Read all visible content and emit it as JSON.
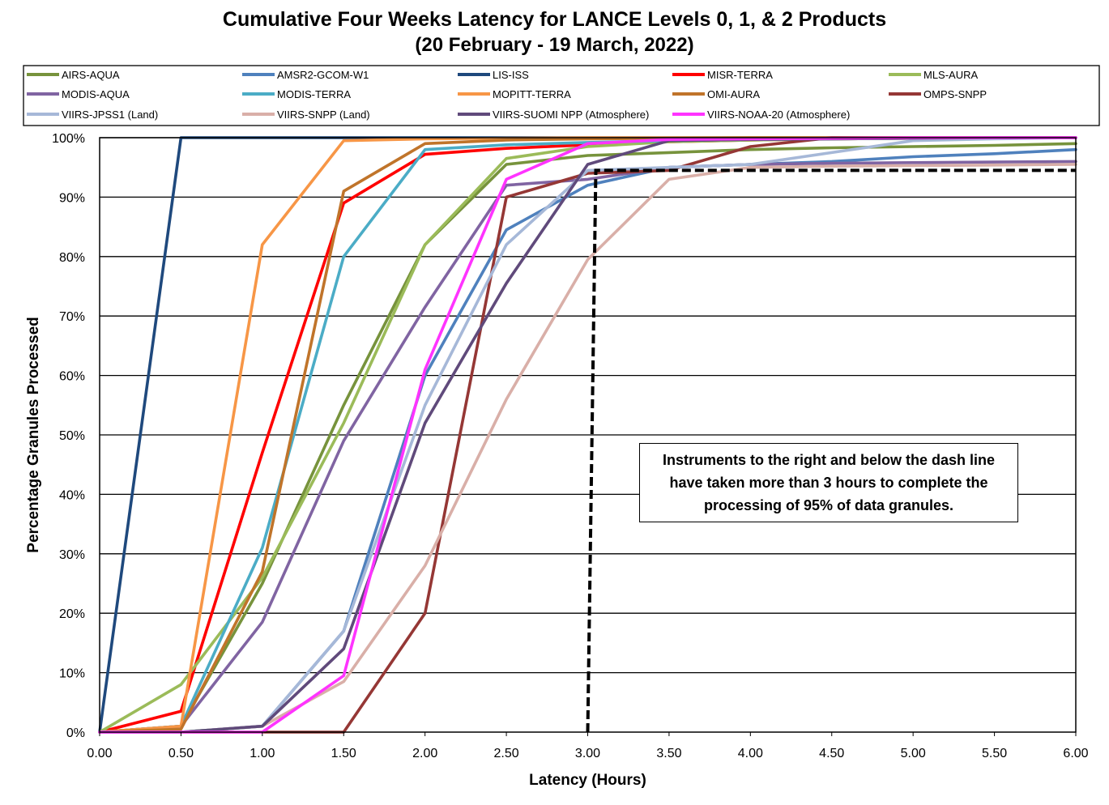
{
  "chart_data": {
    "type": "line",
    "title": "Cumulative Four Weeks Latency  for LANCE Levels 0, 1, & 2 Products",
    "subtitle": "(20  February   -  19  March,  2022)",
    "xlabel": "Latency (Hours)",
    "ylabel": "Percentage Granules Processed",
    "xlim": [
      0,
      6
    ],
    "ylim": [
      0,
      100
    ],
    "x_ticks": [
      "0.00",
      "0.50",
      "1.00",
      "1.50",
      "2.00",
      "2.50",
      "3.00",
      "3.50",
      "4.00",
      "4.50",
      "5.00",
      "5.50",
      "6.00"
    ],
    "y_ticks": [
      "0%",
      "10%",
      "20%",
      "30%",
      "40%",
      "50%",
      "60%",
      "70%",
      "80%",
      "90%",
      "100%"
    ],
    "grid": "horizontal",
    "legend_position": "top",
    "annotation": "Instruments to the right and below the dash line have taken more than 3 hours to complete the processing of 95% of data granules.",
    "threshold_line": {
      "x": [
        3.0,
        3.05,
        6.0
      ],
      "y": [
        0,
        94.5,
        94.5
      ],
      "style": "dashed",
      "color": "#000000"
    },
    "x": [
      0,
      0.5,
      1.0,
      1.5,
      2.0,
      2.5,
      3.0,
      3.5,
      4.0,
      4.5,
      5.0,
      5.5,
      6.0
    ],
    "series": [
      {
        "name": "AIRS-AQUA",
        "color": "#77933C",
        "values": [
          0,
          1,
          25,
          55,
          82,
          95.5,
          97,
          97.5,
          98,
          98.3,
          98.5,
          98.7,
          99
        ]
      },
      {
        "name": "AMSR2-GCOM-W1",
        "color": "#4F81BD",
        "values": [
          0,
          0,
          1,
          17,
          60,
          84.5,
          92,
          95,
          95.5,
          96,
          96.8,
          97.3,
          98
        ]
      },
      {
        "name": "LIS-ISS",
        "color": "#1F497D",
        "values": [
          0,
          100,
          100,
          100,
          100,
          100,
          100,
          100,
          100,
          100,
          100,
          100,
          100
        ]
      },
      {
        "name": "MISR-TERRA",
        "color": "#FF0000",
        "values": [
          0,
          3.5,
          47,
          89,
          97.2,
          98.2,
          98.8,
          99.3,
          99.6,
          99.8,
          99.9,
          100,
          100
        ]
      },
      {
        "name": "MLS-AURA",
        "color": "#9BBB59",
        "values": [
          0,
          8,
          26,
          52,
          82,
          96.5,
          98.5,
          99.3,
          99.6,
          99.8,
          99.9,
          100,
          100
        ]
      },
      {
        "name": "MODIS-AQUA",
        "color": "#8064A2",
        "values": [
          0,
          1,
          18.5,
          49,
          71.5,
          92,
          93,
          95,
          95.5,
          95.7,
          95.8,
          95.9,
          96
        ]
      },
      {
        "name": "MODIS-TERRA",
        "color": "#4BACC6",
        "values": [
          0,
          1,
          31,
          80,
          98,
          98.8,
          99.2,
          99.5,
          99.7,
          99.8,
          99.9,
          100,
          100
        ]
      },
      {
        "name": "MOPITT-TERRA",
        "color": "#F79646",
        "values": [
          0,
          1,
          82,
          99.5,
          99.8,
          99.9,
          100,
          100,
          100,
          100,
          100,
          100,
          100
        ]
      },
      {
        "name": "OMI-AURA",
        "color": "#C0742A",
        "values": [
          0,
          0.5,
          27,
          91,
          99,
          99.6,
          99.8,
          99.9,
          100,
          100,
          100,
          100,
          100
        ]
      },
      {
        "name": "OMPS-SNPP",
        "color": "#953735",
        "values": [
          0,
          0,
          0,
          0,
          20,
          90,
          94,
          94.5,
          98.5,
          100,
          100,
          100,
          100
        ]
      },
      {
        "name": "VIIRS-JPSS1 (Land)",
        "color": "#A6B8D8",
        "values": [
          0,
          0,
          1,
          17,
          55,
          82,
          94.5,
          95,
          95.5,
          97.5,
          99.5,
          99.8,
          100
        ]
      },
      {
        "name": "VIIRS-SNPP (Land)",
        "color": "#D9AFA8",
        "values": [
          0,
          0,
          1,
          8.5,
          28,
          56,
          79.5,
          93,
          95,
          95.2,
          95.3,
          95.4,
          95.5
        ]
      },
      {
        "name": "VIIRS-SUOMI NPP (Atmosphere)",
        "color": "#604A7B",
        "values": [
          0,
          0,
          1,
          14,
          52,
          75.5,
          95.5,
          99.5,
          99.7,
          99.8,
          99.9,
          100,
          100
        ]
      },
      {
        "name": "VIIRS-NOAA-20 (Atmosphere)",
        "color": "#FF33FF",
        "values": [
          0,
          0,
          0,
          9.5,
          61,
          93,
          99,
          99.7,
          99.8,
          99.9,
          100,
          100,
          100
        ]
      }
    ]
  }
}
